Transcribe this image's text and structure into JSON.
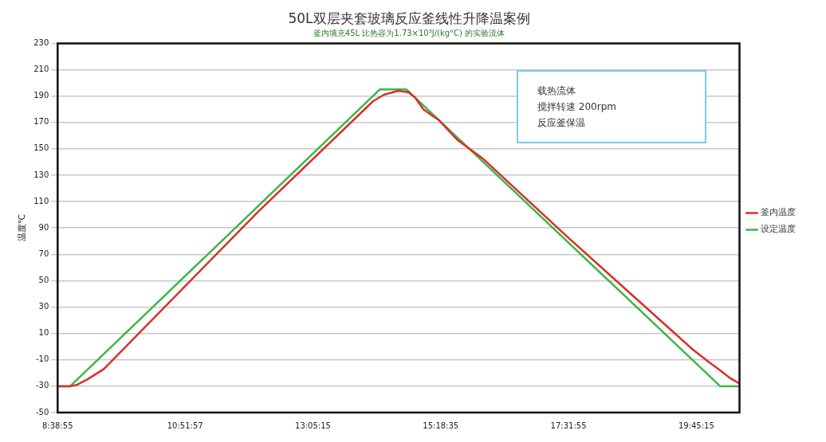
{
  "chart_data": {
    "type": "line",
    "title": "50L双层夹套玻璃反应釜线性升降温案例",
    "subtitle": "釜内填充45L 比热容为1.73×10³J/(kg°C) 的实验流体",
    "ylabel": "温度℃",
    "annotations": [
      "载热流体",
      "搅拌转速 200rpm",
      "反应釜保温"
    ],
    "series": [
      {
        "name": "釜内温度",
        "color": "#d9302b",
        "x": [
          8.649,
          8.868,
          8.985,
          9.16,
          9.453,
          12.128,
          14.131,
          14.321,
          14.57,
          14.745,
          14.862,
          15.008,
          15.169,
          15.271,
          15.593,
          16.031,
          17.493,
          19.687,
          19.979,
          20.169,
          20.345,
          20.505
        ],
        "values": [
          -30,
          -30,
          -29,
          -25,
          -17,
          102,
          186,
          191,
          194,
          193,
          189,
          180,
          175,
          172,
          157,
          143,
          84,
          -2,
          -12,
          -18,
          -24,
          -28
        ]
      },
      {
        "name": "设定温度",
        "color": "#3cb64a",
        "x": [
          8.649,
          8.868,
          14.25,
          14.716,
          20.169,
          20.505
        ],
        "values": [
          -30,
          -30,
          195,
          195,
          -30,
          -30
        ]
      }
    ],
    "xlim": [
      8.6486,
      20.505
    ],
    "xticks": [
      {
        "value": 8.6486,
        "label": "8:38:55"
      },
      {
        "value": 10.8658,
        "label": "10:51:57"
      },
      {
        "value": 13.0875,
        "label": "13:05:15"
      },
      {
        "value": 15.3097,
        "label": "15:18:35"
      },
      {
        "value": 17.5319,
        "label": "17:31:55"
      },
      {
        "value": 19.7542,
        "label": "19:45:15"
      }
    ],
    "ylim": [
      -50,
      230
    ],
    "yticks": [
      -50,
      -30,
      -10,
      10,
      30,
      50,
      70,
      90,
      110,
      130,
      150,
      170,
      190,
      210,
      230
    ],
    "grid": "y",
    "legend": "right",
    "marker": "none",
    "line_style": "solid"
  }
}
